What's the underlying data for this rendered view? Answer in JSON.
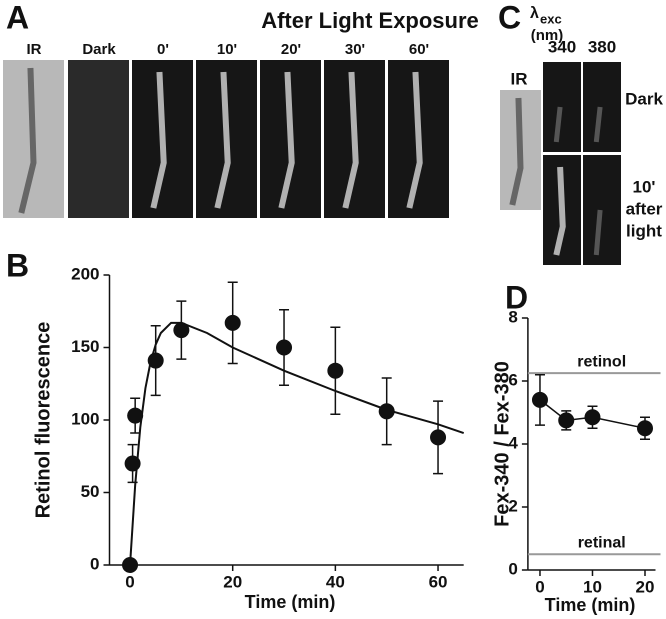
{
  "panel_a": {
    "label": "A",
    "title": "After Light Exposure",
    "frames": [
      "IR",
      "Dark",
      "0'",
      "10'",
      "20'",
      "30'",
      "60'"
    ]
  },
  "panel_c": {
    "label": "C",
    "lambda": "λ",
    "subscript": "exc",
    "unit": "(nm)",
    "columns": [
      "340",
      "380"
    ],
    "ir": "IR",
    "rows": [
      [
        "Dark"
      ],
      [
        "10'",
        "after",
        "light"
      ]
    ]
  },
  "chart_data": [
    {
      "type": "scatter",
      "panel_label": "B",
      "x_label": "Time (min)",
      "y_label": "Retinol fluorescence",
      "x": [
        0,
        0.5,
        1,
        5,
        10,
        20,
        30,
        40,
        50,
        60
      ],
      "values": [
        0,
        70,
        103,
        141,
        162,
        167,
        150,
        134,
        106,
        88
      ],
      "errors": [
        0,
        13,
        12,
        24,
        20,
        28,
        26,
        30,
        23,
        25
      ],
      "color": "#111111",
      "fit": {
        "x": [
          0,
          1,
          2,
          3,
          4,
          5,
          6,
          8,
          10,
          15,
          20,
          30,
          40,
          50,
          60,
          65
        ],
        "values": [
          0,
          55,
          95,
          122,
          140,
          152,
          160,
          167,
          167,
          160,
          150,
          134,
          120,
          107,
          97,
          91
        ]
      },
      "xlim": [
        -4,
        65
      ],
      "ylim": [
        0,
        200
      ],
      "xticks": [
        0,
        20,
        40,
        60
      ],
      "yticks": [
        0,
        50,
        100,
        150,
        200
      ],
      "grid": false
    },
    {
      "type": "scatter",
      "panel_label": "D",
      "x_label": "Time (min)",
      "y_label": "Fex-340 / Fex-380",
      "x": [
        0,
        5,
        10,
        20
      ],
      "values": [
        5.4,
        4.75,
        4.85,
        4.5
      ],
      "errors": [
        0.8,
        0.3,
        0.35,
        0.35
      ],
      "color": "#111111",
      "connect": true,
      "ref_lines": [
        {
          "label": "retinol",
          "value": 6.25,
          "color": "#999999"
        },
        {
          "label": "retinal",
          "value": 0.5,
          "color": "#999999"
        }
      ],
      "xlim": [
        -2.3,
        22
      ],
      "ylim": [
        0,
        8
      ],
      "xticks": [
        0,
        10,
        20
      ],
      "yticks": [
        0,
        2,
        4,
        6,
        8
      ],
      "grid": false
    }
  ]
}
